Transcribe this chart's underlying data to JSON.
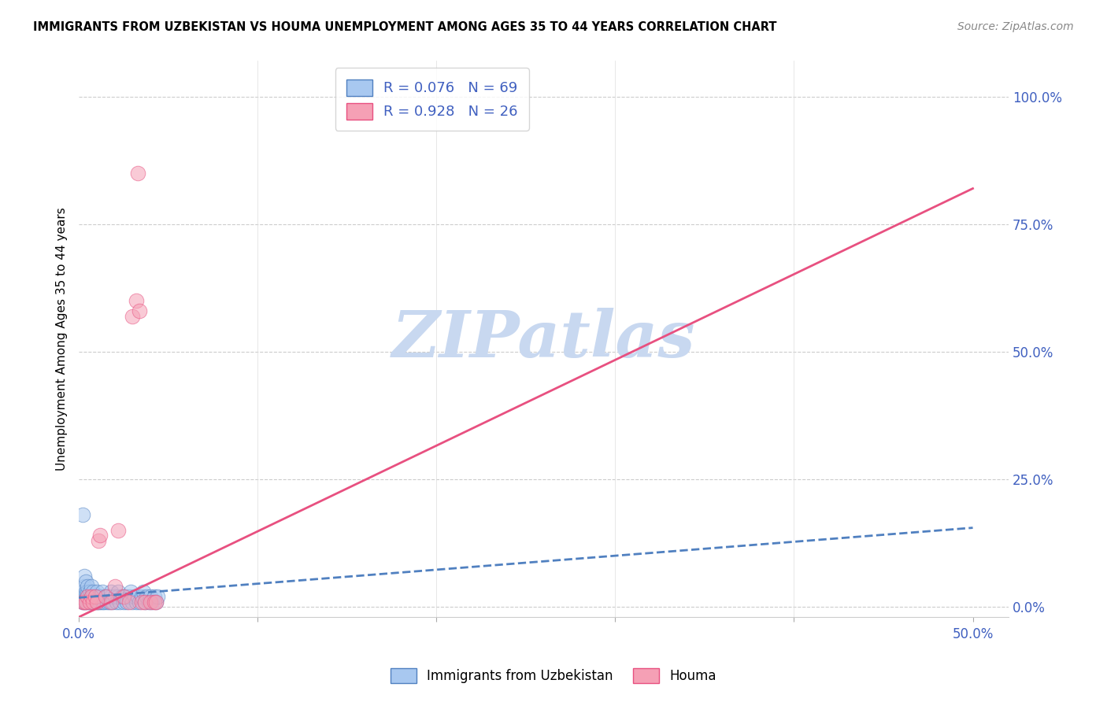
{
  "title": "IMMIGRANTS FROM UZBEKISTAN VS HOUMA UNEMPLOYMENT AMONG AGES 35 TO 44 YEARS CORRELATION CHART",
  "source": "Source: ZipAtlas.com",
  "xlabel_ticks": [
    "0.0%",
    "",
    "",
    "",
    "",
    "50.0%"
  ],
  "xlabel_vals": [
    0.0,
    0.1,
    0.2,
    0.3,
    0.4,
    0.5
  ],
  "ylabel_ticks": [
    "0.0%",
    "25.0%",
    "50.0%",
    "75.0%",
    "100.0%"
  ],
  "ylabel_vals": [
    0.0,
    0.25,
    0.5,
    0.75,
    1.0
  ],
  "ylabel_label": "Unemployment Among Ages 35 to 44 years",
  "legend_label1": "Immigrants from Uzbekistan",
  "legend_label2": "Houma",
  "R1": "0.076",
  "N1": "69",
  "R2": "0.928",
  "N2": "26",
  "xlim": [
    0.0,
    0.52
  ],
  "ylim": [
    -0.02,
    1.07
  ],
  "blue_color": "#A8C8F0",
  "pink_color": "#F5A0B5",
  "trend_blue_color": "#5080C0",
  "trend_pink_color": "#E85080",
  "tick_color": "#4060C0",
  "watermark_color": "#C8D8F0",
  "blue_scatter_x": [
    0.001,
    0.002,
    0.002,
    0.002,
    0.003,
    0.003,
    0.003,
    0.003,
    0.004,
    0.004,
    0.004,
    0.004,
    0.005,
    0.005,
    0.005,
    0.005,
    0.006,
    0.006,
    0.006,
    0.007,
    0.007,
    0.007,
    0.008,
    0.008,
    0.008,
    0.009,
    0.009,
    0.01,
    0.01,
    0.011,
    0.011,
    0.012,
    0.012,
    0.013,
    0.013,
    0.014,
    0.015,
    0.016,
    0.016,
    0.017,
    0.018,
    0.018,
    0.019,
    0.02,
    0.021,
    0.022,
    0.022,
    0.023,
    0.024,
    0.025,
    0.026,
    0.027,
    0.028,
    0.029,
    0.03,
    0.031,
    0.032,
    0.033,
    0.034,
    0.035,
    0.036,
    0.037,
    0.038,
    0.039,
    0.04,
    0.041,
    0.042,
    0.043,
    0.044
  ],
  "blue_scatter_y": [
    0.02,
    0.01,
    0.03,
    0.18,
    0.01,
    0.02,
    0.04,
    0.06,
    0.01,
    0.02,
    0.03,
    0.05,
    0.01,
    0.02,
    0.03,
    0.04,
    0.01,
    0.02,
    0.03,
    0.01,
    0.02,
    0.04,
    0.01,
    0.02,
    0.03,
    0.01,
    0.02,
    0.01,
    0.03,
    0.01,
    0.02,
    0.01,
    0.02,
    0.01,
    0.03,
    0.01,
    0.02,
    0.01,
    0.02,
    0.01,
    0.02,
    0.03,
    0.01,
    0.02,
    0.01,
    0.02,
    0.03,
    0.01,
    0.02,
    0.01,
    0.02,
    0.01,
    0.02,
    0.03,
    0.01,
    0.02,
    0.01,
    0.02,
    0.01,
    0.02,
    0.03,
    0.01,
    0.02,
    0.01,
    0.02,
    0.01,
    0.02,
    0.01,
    0.02
  ],
  "pink_scatter_x": [
    0.002,
    0.003,
    0.004,
    0.005,
    0.006,
    0.007,
    0.008,
    0.009,
    0.01,
    0.011,
    0.012,
    0.015,
    0.018,
    0.02,
    0.022,
    0.025,
    0.028,
    0.03,
    0.032,
    0.033,
    0.034,
    0.035,
    0.037,
    0.04,
    0.042,
    0.043
  ],
  "pink_scatter_y": [
    0.01,
    0.01,
    0.01,
    0.02,
    0.01,
    0.02,
    0.01,
    0.02,
    0.01,
    0.13,
    0.14,
    0.02,
    0.01,
    0.04,
    0.15,
    0.02,
    0.01,
    0.57,
    0.6,
    0.85,
    0.58,
    0.01,
    0.01,
    0.01,
    0.01,
    0.01
  ],
  "blue_trend_x": [
    0.0,
    0.5
  ],
  "blue_trend_y": [
    0.018,
    0.155
  ],
  "pink_trend_x": [
    0.0,
    0.5
  ],
  "pink_trend_y": [
    -0.02,
    0.82
  ]
}
